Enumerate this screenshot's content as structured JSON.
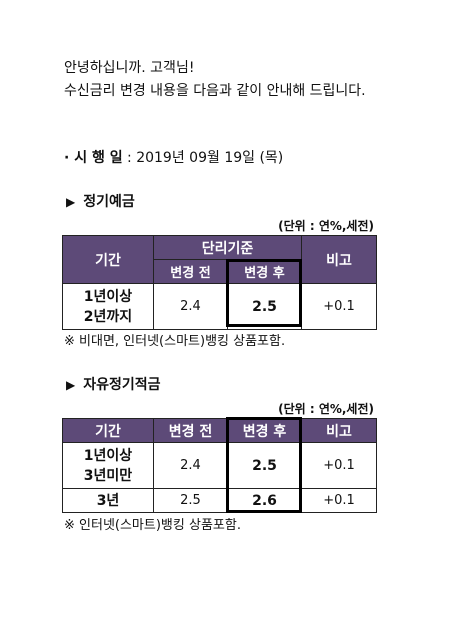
{
  "greeting": {
    "line1": "안녕하십니까. 고객님!",
    "line2": "수신금리 변경 내용을 다음과 같이 안내해 드립니다."
  },
  "effective": {
    "label": "· 시 행 일",
    "value": " : 2019년 09월 19일 (목)"
  },
  "section1": {
    "arrow": "▶",
    "title": "정기예금",
    "unit": "(단위 : 연%,세전)",
    "headers": {
      "period": "기간",
      "group": "단리기준",
      "before": "변경 전",
      "after": "변경 후",
      "remark": "비고"
    },
    "rows": [
      {
        "period_l1": "1년이상",
        "period_l2": "2년까지",
        "before": "2.4",
        "after": "2.5",
        "remark": "+0.1"
      }
    ],
    "note": "※ 비대면, 인터넷(스마트)뱅킹 상품포함."
  },
  "section2": {
    "arrow": "▶",
    "title": "자유정기적금",
    "unit": "(단위 : 연%,세전)",
    "headers": {
      "period": "기간",
      "before": "변경 전",
      "after": "변경 후",
      "remark": "비고"
    },
    "rows": [
      {
        "period_l1": "1년이상",
        "period_l2": "3년미만",
        "before": "2.4",
        "after": "2.5",
        "remark": "+0.1"
      },
      {
        "period_l1": "3년",
        "before": "2.5",
        "after": "2.6",
        "remark": "+0.1"
      }
    ],
    "note": "※ 인터넷(스마트)뱅킹 상품포함."
  }
}
